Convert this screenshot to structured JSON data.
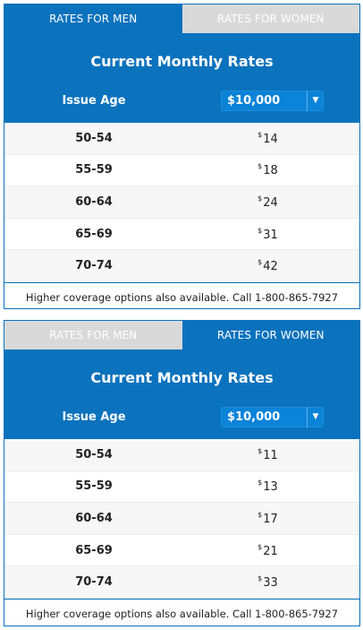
{
  "widgets": [
    {
      "tabs": [
        "RATES FOR MEN",
        "RATES FOR WOMEN"
      ],
      "active_tab": 0,
      "title": "Current Monthly Rates",
      "issue_label": "Issue Age",
      "coverage_selected": "$10,000",
      "currency": "$",
      "rows": [
        {
          "age": "50-54",
          "rate": "14"
        },
        {
          "age": "55-59",
          "rate": "18"
        },
        {
          "age": "60-64",
          "rate": "24"
        },
        {
          "age": "65-69",
          "rate": "31"
        },
        {
          "age": "70-74",
          "rate": "42"
        }
      ],
      "footer": "Higher coverage options also available. Call 1-800-865-7927"
    },
    {
      "tabs": [
        "RATES FOR MEN",
        "RATES FOR WOMEN"
      ],
      "active_tab": 1,
      "title": "Current Monthly Rates",
      "issue_label": "Issue Age",
      "coverage_selected": "$10,000",
      "currency": "$",
      "rows": [
        {
          "age": "50-54",
          "rate": "11"
        },
        {
          "age": "55-59",
          "rate": "13"
        },
        {
          "age": "60-64",
          "rate": "17"
        },
        {
          "age": "65-69",
          "rate": "21"
        },
        {
          "age": "70-74",
          "rate": "33"
        }
      ],
      "footer": "Higher coverage options also available. Call 1-800-865-7927"
    }
  ],
  "colors": {
    "primary": "#0b72bd",
    "inactive_tab": "#d9d9d9",
    "select_bg": "#0a83d8"
  },
  "icons": {
    "dropdown": "chevron-down-icon"
  }
}
